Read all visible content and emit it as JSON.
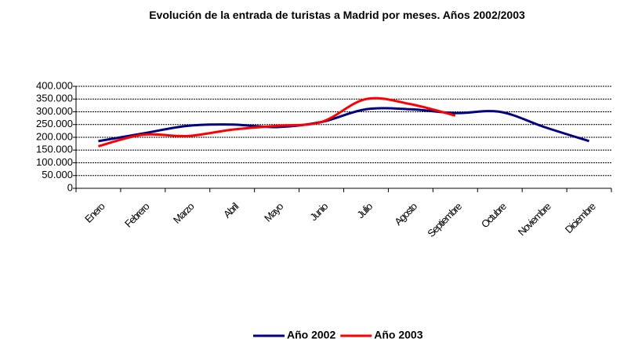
{
  "chart_data": {
    "type": "line",
    "title": "Evolución de la entrada de turistas a Madrid por meses. Años 2002/2003",
    "categories": [
      "Enero",
      "Febrero",
      "Marzo",
      "Abril",
      "Mayo",
      "Junio",
      "Julio",
      "Agosto",
      "Septiembre",
      "Octubre",
      "Noviembre",
      "Diciembre"
    ],
    "series": [
      {
        "name": "Año 2002",
        "color": "#000080",
        "values": [
          185000,
          215000,
          245000,
          250000,
          240000,
          260000,
          310000,
          310000,
          295000,
          300000,
          240000,
          185000
        ]
      },
      {
        "name": "Año 2003",
        "color": "#ff0000",
        "values": [
          165000,
          210000,
          205000,
          230000,
          245000,
          260000,
          350000,
          330000,
          285000,
          null,
          null,
          null
        ]
      }
    ],
    "ylim": [
      0,
      400000
    ],
    "yticks": [
      0,
      {
        "value": 50000,
        "label": "50.000"
      },
      {
        "value": 100000,
        "label": "100.000"
      },
      {
        "value": 150000,
        "label": "150.000"
      },
      {
        "value": 200000,
        "label": "200.000"
      },
      {
        "value": 250000,
        "label": "250.000"
      },
      {
        "value": 300000,
        "label": "300.000"
      },
      {
        "value": 350000,
        "label": "350.000"
      },
      {
        "value": 400000,
        "label": "400.000"
      }
    ],
    "grid": true,
    "legend": "bottom"
  }
}
